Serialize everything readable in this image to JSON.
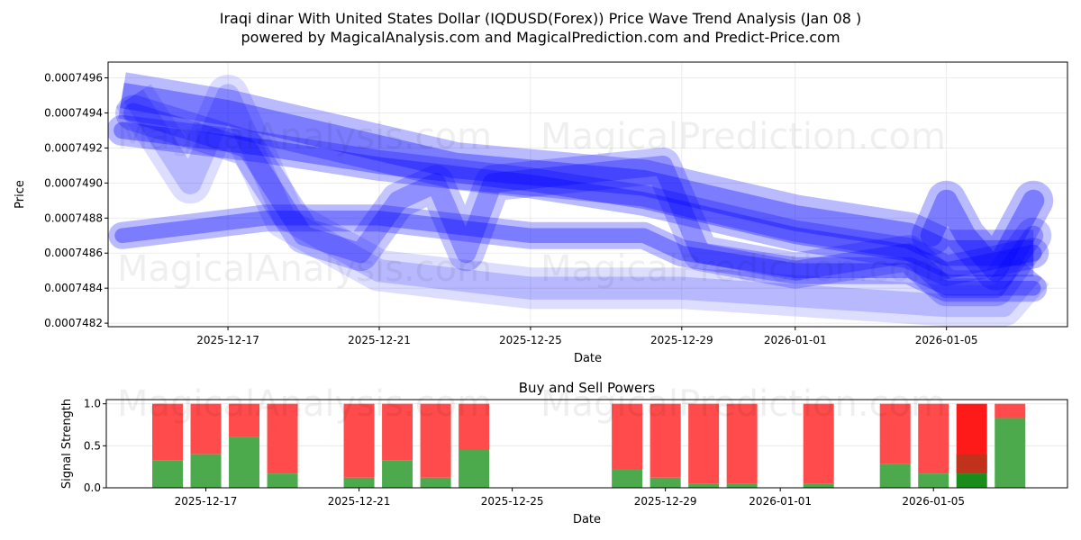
{
  "title_line1": "Iraqi dinar With United States Dollar (IQDUSD(Forex)) Price Wave Trend Analysis (Jan 08 )",
  "title_line2": "powered by MagicalAnalysis.com and MagicalPrediction.com and Predict-Price.com",
  "watermarks": [
    "MagicalAnalysis.com",
    "MagicalPrediction.com"
  ],
  "chart_data": [
    {
      "type": "line",
      "title": "",
      "xlabel": "Date",
      "ylabel": "Price",
      "base_date": "2025-12-17",
      "xlim_days": [
        -3.17,
        22.2
      ],
      "ylim": [
        0.00074818,
        0.00074969
      ],
      "grid": true,
      "xticks": [
        {
          "day": 0,
          "label": "2025-12-17"
        },
        {
          "day": 4,
          "label": "2025-12-21"
        },
        {
          "day": 8,
          "label": "2025-12-25"
        },
        {
          "day": 12,
          "label": "2025-12-29"
        },
        {
          "day": 15,
          "label": "2026-01-01"
        },
        {
          "day": 19,
          "label": "2026-01-05"
        }
      ],
      "yticks": [
        {
          "value": 0.0007482,
          "label": "0.0007482"
        },
        {
          "value": 0.0007484,
          "label": "0.0007484"
        },
        {
          "value": 0.0007486,
          "label": "0.0007486"
        },
        {
          "value": 0.0007488,
          "label": "0.0007488"
        },
        {
          "value": 0.000749,
          "label": "0.0007490"
        },
        {
          "value": 0.0007492,
          "label": "0.0007492"
        },
        {
          "value": 0.0007494,
          "label": "0.0007494"
        },
        {
          "value": 0.0007496,
          "label": "0.0007496"
        }
      ],
      "color": "#0000ff",
      "series": [
        {
          "name": "wave-upper",
          "opacity": 0.3,
          "points": [
            [
              -2.8,
              0.0007493
            ],
            [
              1,
              0.0007492
            ],
            [
              4,
              0.0007491
            ],
            [
              8,
              0.000749
            ],
            [
              11,
              0.0007489
            ],
            [
              15,
              0.0007487
            ],
            [
              18,
              0.0007486
            ],
            [
              19,
              0.0007485
            ],
            [
              21.3,
              0.0007486
            ]
          ]
        },
        {
          "name": "wave-middle",
          "opacity": 0.3,
          "points": [
            [
              -2.8,
              0.0007487
            ],
            [
              1,
              0.0007488
            ],
            [
              4,
              0.0007488
            ],
            [
              8,
              0.0007487
            ],
            [
              11,
              0.0007487
            ],
            [
              12,
              0.0007486
            ],
            [
              15,
              0.0007485
            ],
            [
              18,
              0.0007485
            ],
            [
              19,
              0.0007484
            ],
            [
              21.3,
              0.0007484
            ]
          ]
        },
        {
          "name": "wave-zigzag",
          "opacity": 0.25,
          "points": [
            [
              -2.5,
              0.0007494
            ],
            [
              -1,
              0.0007493
            ],
            [
              0.5,
              0.0007492
            ],
            [
              2,
              0.0007487
            ],
            [
              3.5,
              0.0007486
            ],
            [
              4.5,
              0.0007489
            ],
            [
              5.5,
              0.000749
            ],
            [
              6.3,
              0.0007486
            ],
            [
              7,
              0.000749
            ],
            [
              11.5,
              0.0007491
            ],
            [
              12.5,
              0.0007486
            ],
            [
              15,
              0.0007485
            ],
            [
              18,
              0.0007486
            ],
            [
              19,
              0.0007484
            ],
            [
              20.3,
              0.0007484
            ],
            [
              21.3,
              0.0007487
            ]
          ]
        },
        {
          "name": "wave-light",
          "opacity": 0.15,
          "points": [
            [
              -2.5,
              0.0007495
            ],
            [
              -1,
              0.000749
            ],
            [
              0,
              0.0007495
            ],
            [
              1.5,
              0.0007488
            ],
            [
              4,
              0.0007485
            ],
            [
              8,
              0.0007484
            ],
            [
              12,
              0.0007484
            ],
            [
              19,
              0.0007483
            ],
            [
              20.5,
              0.0007483
            ],
            [
              21.3,
              0.0007485
            ]
          ]
        },
        {
          "name": "wave-band-top",
          "opacity": 0.3,
          "points": [
            [
              -2.8,
              0.0007495
            ],
            [
              0,
              0.0007494
            ],
            [
              2,
              0.0007493
            ],
            [
              6,
              0.0007491
            ],
            [
              11,
              0.000749
            ],
            [
              15,
              0.0007488
            ],
            [
              18,
              0.0007487
            ],
            [
              19,
              0.0007486
            ],
            [
              21.3,
              0.0007486
            ]
          ]
        },
        {
          "name": "wave-blob-1",
          "opacity": 0.3,
          "points": [
            [
              18.6,
              0.0007487
            ],
            [
              19,
              0.0007489
            ],
            [
              19.5,
              0.0007487
            ],
            [
              20.3,
              0.0007485
            ],
            [
              21.3,
              0.0007489
            ]
          ]
        }
      ]
    },
    {
      "type": "bar",
      "title": "Buy and Sell Powers",
      "xlabel": "Date",
      "ylabel": "Signal Strength",
      "base_date": "2025-12-17",
      "xlim_days": [
        -2.6,
        22.5
      ],
      "ylim": [
        0,
        1.05
      ],
      "xticks": [
        {
          "day": 0,
          "label": "2025-12-17"
        },
        {
          "day": 4,
          "label": "2025-12-21"
        },
        {
          "day": 8,
          "label": "2025-12-25"
        },
        {
          "day": 12,
          "label": "2025-12-29"
        },
        {
          "day": 15,
          "label": "2026-01-01"
        },
        {
          "day": 19,
          "label": "2026-01-05"
        }
      ],
      "yticks": [
        {
          "value": 0,
          "label": "0.0"
        },
        {
          "value": 0.5,
          "label": "0.5"
        },
        {
          "value": 1,
          "label": "1.0"
        }
      ],
      "colors": {
        "buy": "#4caa4c",
        "sell": "#ff4b4b",
        "buy_highlight": "#1a8c1a",
        "mid_highlight": "#c0321c",
        "sell_highlight": "#ff1a1a"
      },
      "bars": [
        {
          "date": "2025-12-16",
          "day": -1,
          "buy": 0.33
        },
        {
          "date": "2025-12-17",
          "day": 0,
          "buy": 0.4
        },
        {
          "date": "2025-12-18",
          "day": 1,
          "buy": 0.61
        },
        {
          "date": "2025-12-19",
          "day": 2,
          "buy": 0.17
        },
        {
          "date": "2025-12-21",
          "day": 4,
          "buy": 0.12
        },
        {
          "date": "2025-12-22",
          "day": 5,
          "buy": 0.33
        },
        {
          "date": "2025-12-23",
          "day": 6,
          "buy": 0.12
        },
        {
          "date": "2025-12-24",
          "day": 7,
          "buy": 0.45
        },
        {
          "date": "2025-12-28",
          "day": 11,
          "buy": 0.22
        },
        {
          "date": "2025-12-29",
          "day": 12,
          "buy": 0.12
        },
        {
          "date": "2025-12-30",
          "day": 13,
          "buy": 0.05
        },
        {
          "date": "2025-12-31",
          "day": 14,
          "buy": 0.05
        },
        {
          "date": "2026-01-02",
          "day": 16,
          "buy": 0.05
        },
        {
          "date": "2026-01-04",
          "day": 18,
          "buy": 0.28
        },
        {
          "date": "2026-01-05",
          "day": 19,
          "buy": 0.17
        },
        {
          "date": "2026-01-06",
          "day": 20,
          "buy": 0.17,
          "highlight": true,
          "mid": 0.4
        },
        {
          "date": "2026-01-07",
          "day": 21,
          "buy": 0.83
        }
      ]
    }
  ]
}
